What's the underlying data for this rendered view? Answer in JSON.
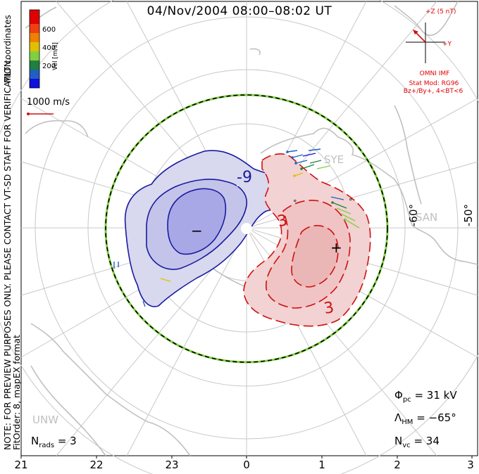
{
  "title": "04/Nov/2004 08:00–08:02 UT",
  "side_note": {
    "line1": "NOTE: FOR PREVIEW PURPOSES ONLY. PLEASE CONTACT VT-SD STAFF FOR VERIFICATION.",
    "line2": "FitOrder: 8, mapEX format"
  },
  "coords_label": "MLT coordinates",
  "colorbar": {
    "label": "Vel [m/s]",
    "ticks": [
      "600",
      "400",
      "200"
    ],
    "colors": [
      "#1010e0",
      "#2060c0",
      "#208040",
      "#80d040",
      "#e0c000",
      "#f08000",
      "#f04010",
      "#e00000"
    ]
  },
  "velocity_scale": {
    "label": "1000 m/s"
  },
  "imf": {
    "bz_label": "+Z (5 nT)",
    "by_label": "+Y",
    "source": "OMNI IMF",
    "stat_model": "Stat Mod: RG96",
    "condition": "Bz+/By+, 4<BT<6"
  },
  "contour_labels": {
    "neg": "-9",
    "pos_top": "3",
    "pos_bottom": "3"
  },
  "potential_markers": {
    "min": "−",
    "max": "+"
  },
  "lat_labels": [
    "-60°",
    "-50°"
  ],
  "stations": [
    "SYE",
    "SAN",
    "UNW"
  ],
  "stats": {
    "phi_label": "Φ",
    "phi_sub": "pc",
    "phi_value": "= 31 kV",
    "lambda_label": "Λ",
    "lambda_sub": "HM",
    "lambda_value": "= −65°",
    "nvc_label": "N",
    "nvc_sub": "vc",
    "nvc_value": "= 34",
    "nrads_label": "N",
    "nrads_sub": "rads",
    "nrads_value": "= 3"
  },
  "mlt_ticks": [
    "21",
    "22",
    "23",
    "0",
    "1",
    "2",
    "3"
  ]
}
